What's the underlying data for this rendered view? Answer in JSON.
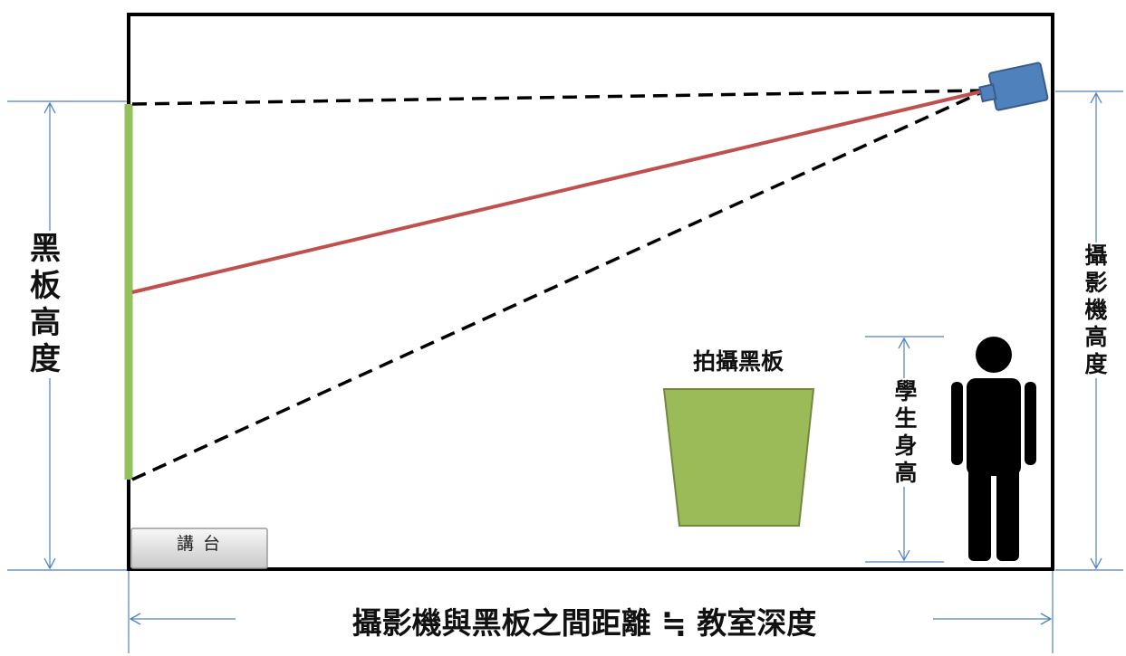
{
  "labels": {
    "blackboard_height": [
      "黑",
      "板",
      "高",
      "度"
    ],
    "camera_height": [
      "攝",
      "影",
      "機",
      "高",
      "度"
    ],
    "student_height": [
      "學",
      "生",
      "身",
      "高"
    ],
    "capture_target": "拍攝黑板",
    "podium": "講 台",
    "distance_equation": "攝影機與黑板之間距離 ≒ 教室深度"
  },
  "colors": {
    "room_border": "#000000",
    "blackboard": "#92c05a",
    "center_line": "#c0504d",
    "dashed_lines": "#000000",
    "camera": "#4f81bd",
    "target_trapezoid": "#9bbb59",
    "dimension_lines": "#4f81bd",
    "person": "#000000"
  },
  "icons": {
    "camera": "camera-icon",
    "person": "person-icon"
  }
}
